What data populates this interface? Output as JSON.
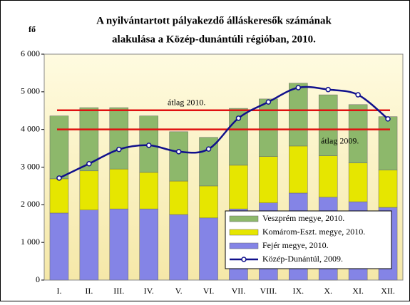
{
  "chart_data": {
    "type": "bar",
    "title_lines": [
      "A nyilvántartott pályakezdő álláskeresők számának",
      "alakulása a Közép-dunántúli régióban, 2010."
    ],
    "y_label": "fő",
    "categories": [
      "I.",
      "II.",
      "III.",
      "IV.",
      "V.",
      "VI.",
      "VII.",
      "VIII.",
      "IX.",
      "X.",
      "XI.",
      "XII."
    ],
    "series": [
      {
        "name": "Fejér megye, 2010.",
        "color": "#8484e6",
        "kind": "bar",
        "values": [
          1780,
          1860,
          1890,
          1890,
          1740,
          1650,
          1890,
          2050,
          2310,
          2200,
          2080,
          1930
        ]
      },
      {
        "name": "Komárom-Eszt. megye, 2010.",
        "color": "#e6e600",
        "kind": "bar",
        "values": [
          910,
          1040,
          1060,
          970,
          890,
          850,
          1160,
          1230,
          1250,
          1100,
          1030,
          990
        ]
      },
      {
        "name": "Veszprém megye, 2010.",
        "color": "#8db86b",
        "kind": "bar",
        "values": [
          1670,
          1680,
          1630,
          1500,
          1310,
          1290,
          1510,
          1530,
          1670,
          1620,
          1550,
          1420
        ]
      },
      {
        "name": "Közép-Dunántúl, 2009.",
        "color": "#10108c",
        "kind": "line",
        "values": [
          2710,
          3090,
          3470,
          3580,
          3410,
          3480,
          4300,
          4730,
          5110,
          5060,
          4920,
          4280
        ]
      }
    ],
    "reference_lines": [
      {
        "label": "átlag 2010.",
        "value": 4510,
        "color": "#e01010"
      },
      {
        "label": "átlag 2009.",
        "value": 4000,
        "color": "#e01010"
      }
    ],
    "ylim": [
      0,
      6000
    ],
    "yticks": [
      0,
      {
        "value": 1000,
        "label": "1 000"
      },
      {
        "value": 2000,
        "label": "2 000"
      },
      {
        "value": 3000,
        "label": "3 000"
      },
      {
        "value": 4000,
        "label": "4 000"
      },
      {
        "value": 5000,
        "label": "5 000"
      },
      {
        "value": 6000,
        "label": "6 000"
      }
    ],
    "grid": false
  }
}
